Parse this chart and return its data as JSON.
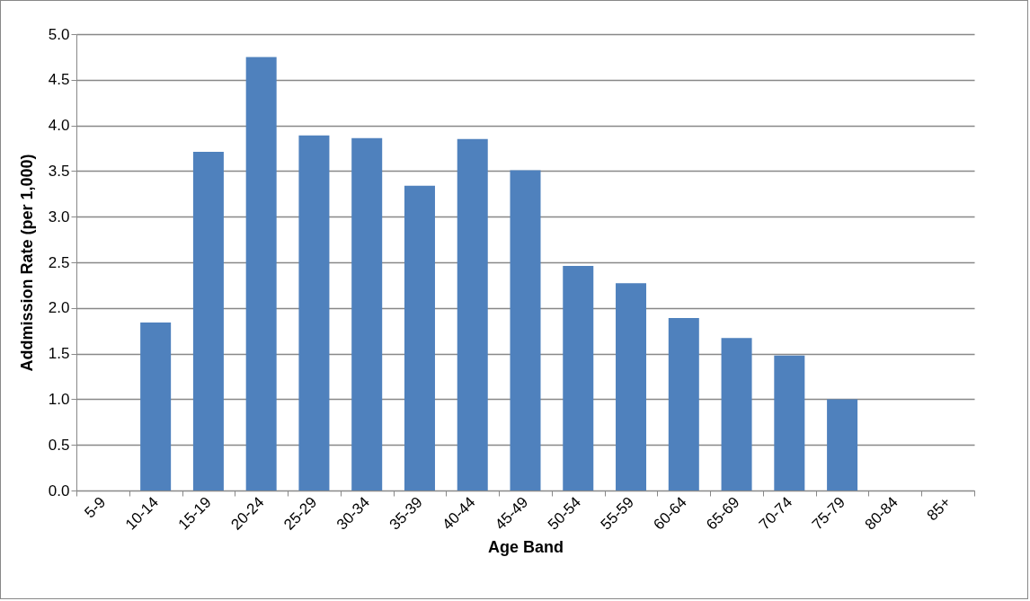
{
  "chart_data": {
    "type": "bar",
    "xlabel": "Age Band",
    "ylabel": "Addmission Rate (per 1,000)",
    "categories": [
      "5-9",
      "10-14",
      "15-19",
      "20-24",
      "25-29",
      "30-34",
      "35-39",
      "40-44",
      "45-49",
      "50-54",
      "55-59",
      "60-64",
      "65-69",
      "70-74",
      "75-79",
      "80-84",
      "85+"
    ],
    "values": [
      null,
      1.84,
      3.71,
      4.75,
      3.89,
      3.86,
      3.34,
      3.85,
      3.51,
      2.46,
      2.27,
      1.89,
      1.67,
      1.48,
      1.0,
      null,
      null
    ],
    "color": "#4f81bd",
    "ylim": [
      0,
      5
    ],
    "yticks": [
      {
        "value": 0,
        "label": "0.0"
      },
      0.5,
      {
        "value": 1,
        "label": "1.0"
      },
      1.5,
      {
        "value": 2,
        "label": "2.0"
      },
      2.5,
      {
        "value": 3,
        "label": "3.0"
      },
      3.5,
      {
        "value": 4,
        "label": "4.0"
      },
      4.5,
      {
        "value": 5,
        "label": "5.0"
      }
    ],
    "grid": "y"
  }
}
